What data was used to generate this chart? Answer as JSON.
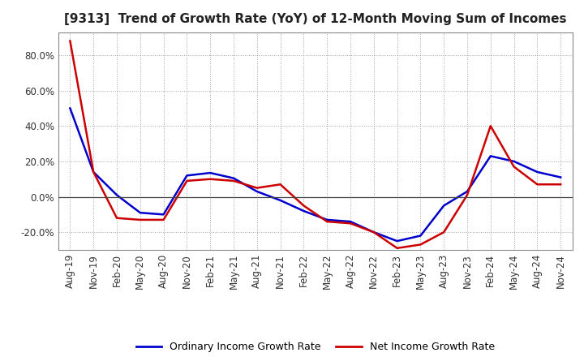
{
  "title": "[9313]  Trend of Growth Rate (YoY) of 12-Month Moving Sum of Incomes",
  "x_labels": [
    "Aug-19",
    "Nov-19",
    "Feb-20",
    "May-20",
    "Aug-20",
    "Nov-20",
    "Feb-21",
    "May-21",
    "Aug-21",
    "Nov-21",
    "Feb-22",
    "May-22",
    "Aug-22",
    "Nov-22",
    "Feb-23",
    "May-23",
    "Aug-23",
    "Nov-23",
    "Feb-24",
    "May-24",
    "Aug-24",
    "Nov-24"
  ],
  "ordinary_income": [
    0.5,
    0.14,
    0.01,
    -0.09,
    -0.1,
    0.12,
    0.135,
    0.105,
    0.03,
    -0.02,
    -0.08,
    -0.13,
    -0.14,
    -0.2,
    -0.25,
    -0.22,
    -0.05,
    0.03,
    0.23,
    0.2,
    0.14,
    0.11
  ],
  "net_income": [
    0.88,
    0.14,
    -0.12,
    -0.13,
    -0.13,
    0.09,
    0.1,
    0.09,
    0.05,
    0.07,
    -0.05,
    -0.14,
    -0.15,
    -0.2,
    -0.29,
    -0.27,
    -0.2,
    0.01,
    0.4,
    0.17,
    0.07,
    0.07
  ],
  "ylim": [
    -0.3,
    0.93
  ],
  "yticks": [
    -0.2,
    0.0,
    0.2,
    0.4,
    0.6,
    0.8
  ],
  "ordinary_color": "#0000CC",
  "net_color": "#CC0000",
  "background_color": "#FFFFFF",
  "grid_color": "#999999",
  "legend_ordinary": "Ordinary Income Growth Rate",
  "legend_net": "Net Income Growth Rate",
  "title_fontsize": 11,
  "tick_fontsize": 8.5,
  "legend_fontsize": 9
}
